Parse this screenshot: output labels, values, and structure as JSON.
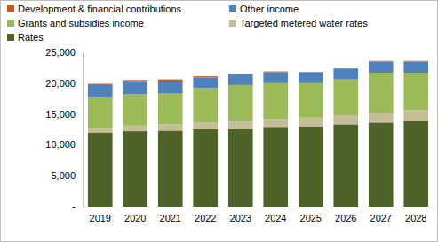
{
  "chart_data": {
    "type": "bar",
    "stacked": true,
    "grid": false,
    "legend": "top",
    "categories": [
      "2019",
      "2020",
      "2021",
      "2022",
      "2023",
      "2024",
      "2025",
      "2026",
      "2027",
      "2028"
    ],
    "ylim": [
      0,
      25000
    ],
    "yticks": [
      {
        "value": 0,
        "label": "-"
      },
      {
        "value": 5000,
        "label": "5,000"
      },
      {
        "value": 10000,
        "label": "10,000"
      },
      {
        "value": 15000,
        "label": "15,000"
      },
      {
        "value": 20000,
        "label": "20,000"
      },
      {
        "value": 25000,
        "label": "25,000"
      }
    ],
    "series": [
      {
        "name": "Rates",
        "color": "#4f6228",
        "values": [
          12000,
          12200,
          12300,
          12500,
          12600,
          12900,
          13000,
          13300,
          13600,
          14000
        ]
      },
      {
        "name": "Targeted metered water rates",
        "color": "#c4bd97",
        "values": [
          700,
          900,
          1000,
          1100,
          1300,
          1300,
          1400,
          1500,
          1500,
          1600
        ]
      },
      {
        "name": "Grants and subsidies income",
        "color": "#9bbb59",
        "values": [
          5100,
          5100,
          5000,
          5600,
          5800,
          5800,
          5600,
          5800,
          6600,
          6100
        ]
      },
      {
        "name": "Other income",
        "color": "#4f81bd",
        "values": [
          1900,
          2100,
          2100,
          1700,
          1700,
          1800,
          1700,
          1700,
          1800,
          1800
        ]
      },
      {
        "name": "Development & financial contributions",
        "color": "#c65a1e",
        "values": [
          200,
          200,
          200,
          200,
          100,
          100,
          100,
          100,
          100,
          100
        ]
      }
    ]
  }
}
